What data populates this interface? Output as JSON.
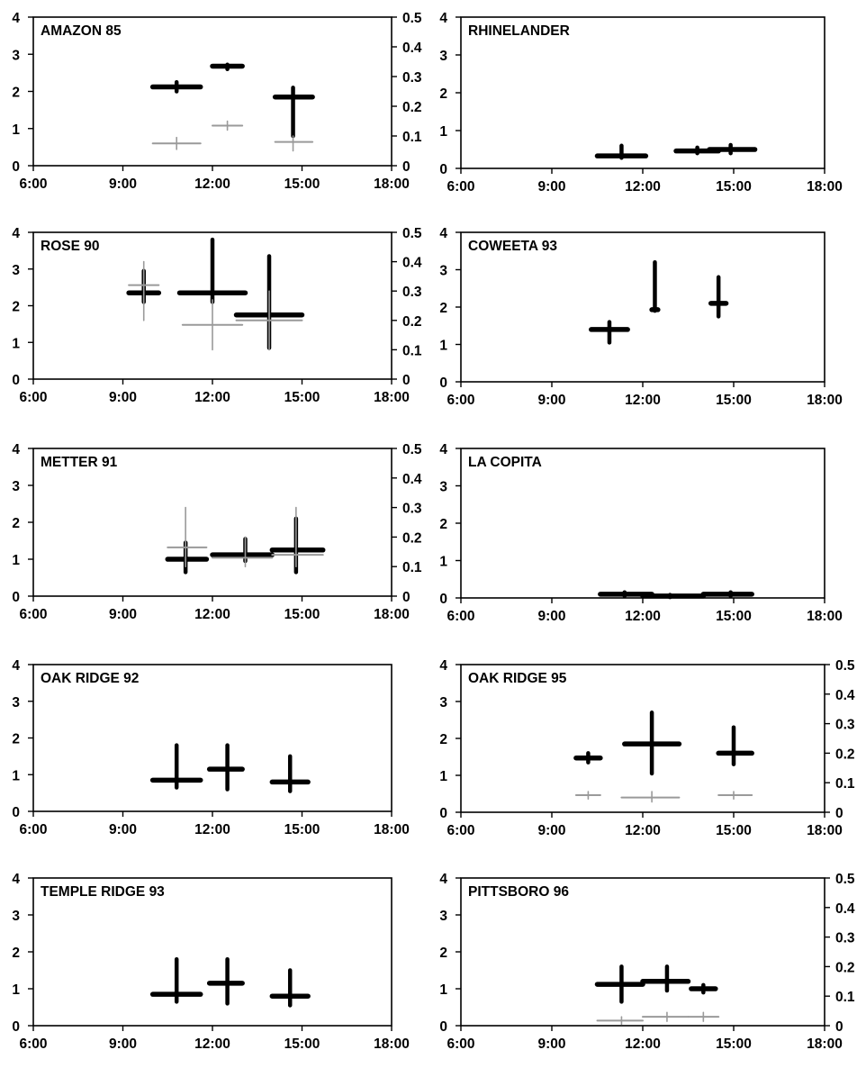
{
  "figure": {
    "black_color": "#000000",
    "gray_color": "#9a9a9a"
  },
  "chart_data": [
    {
      "type": "scatter",
      "title": "AMAZON 85",
      "x_ticks": [
        "6:00",
        "9:00",
        "12:00",
        "15:00",
        "18:00"
      ],
      "xlim": [
        6,
        18
      ],
      "ylim": [
        0,
        4
      ],
      "y_ticks": [
        "0",
        "1",
        "2",
        "3",
        "4"
      ],
      "y2lim": [
        0,
        0.5
      ],
      "y2_ticks": [
        "0",
        "0.1",
        "0.2",
        "0.3",
        "0.4",
        "0.5"
      ],
      "series": [
        {
          "axis": "left",
          "color": "#000000",
          "points": [
            {
              "x": 10.8,
              "x_err": [
                10.0,
                11.6
              ],
              "y": 2.12,
              "y_err": [
                2.0,
                2.25
              ]
            },
            {
              "x": 12.5,
              "x_err": [
                12.0,
                13.0
              ],
              "y": 2.68,
              "y_err": [
                2.6,
                2.72
              ]
            },
            {
              "x": 14.7,
              "x_err": [
                14.1,
                15.35
              ],
              "y": 1.85,
              "y_err": [
                0.8,
                2.1
              ]
            }
          ]
        },
        {
          "axis": "right",
          "color": "#9a9a9a",
          "points": [
            {
              "x": 10.8,
              "x_err": [
                10.0,
                11.6
              ],
              "y": 0.075,
              "y_err": [
                0.055,
                0.095
              ]
            },
            {
              "x": 12.5,
              "x_err": [
                12.0,
                13.0
              ],
              "y": 0.135,
              "y_err": [
                0.12,
                0.15
              ]
            },
            {
              "x": 14.7,
              "x_err": [
                14.1,
                15.35
              ],
              "y": 0.08,
              "y_err": [
                0.05,
                0.1
              ]
            }
          ]
        }
      ]
    },
    {
      "type": "scatter",
      "title": "RHINELANDER",
      "x_ticks": [
        "6:00",
        "9:00",
        "12:00",
        "15:00",
        "18:00"
      ],
      "xlim": [
        6,
        18
      ],
      "ylim": [
        0,
        4
      ],
      "y_ticks": [
        "0",
        "1",
        "2",
        "3",
        "4"
      ],
      "series": [
        {
          "axis": "left",
          "color": "#000000",
          "points": [
            {
              "x": 11.3,
              "x_err": [
                10.5,
                12.1
              ],
              "y": 0.33,
              "y_err": [
                0.28,
                0.6
              ]
            },
            {
              "x": 13.8,
              "x_err": [
                13.1,
                14.5
              ],
              "y": 0.46,
              "y_err": [
                0.4,
                0.55
              ]
            },
            {
              "x": 14.9,
              "x_err": [
                14.2,
                15.7
              ],
              "y": 0.5,
              "y_err": [
                0.4,
                0.62
              ]
            }
          ]
        }
      ]
    },
    {
      "type": "scatter",
      "title": "ROSE 90",
      "x_ticks": [
        "6:00",
        "9:00",
        "12:00",
        "15:00",
        "18:00"
      ],
      "xlim": [
        6,
        18
      ],
      "ylim": [
        0,
        4
      ],
      "y_ticks": [
        "0",
        "1",
        "2",
        "3",
        "4"
      ],
      "y2lim": [
        0,
        0.5
      ],
      "y2_ticks": [
        "0",
        "0.1",
        "0.2",
        "0.3",
        "0.4",
        "0.5"
      ],
      "series": [
        {
          "axis": "left",
          "color": "#000000",
          "points": [
            {
              "x": 9.7,
              "x_err": [
                9.2,
                10.2
              ],
              "y": 2.35,
              "y_err": [
                2.1,
                2.95
              ]
            },
            {
              "x": 12.0,
              "x_err": [
                10.9,
                13.1
              ],
              "y": 2.35,
              "y_err": [
                2.1,
                3.8
              ]
            },
            {
              "x": 13.9,
              "x_err": [
                12.8,
                15.0
              ],
              "y": 1.75,
              "y_err": [
                0.85,
                3.35
              ]
            }
          ]
        },
        {
          "axis": "right",
          "color": "#9a9a9a",
          "points": [
            {
              "x": 9.7,
              "x_err": [
                9.2,
                10.2
              ],
              "y": 0.32,
              "y_err": [
                0.2,
                0.4
              ]
            },
            {
              "x": 12.0,
              "x_err": [
                11.0,
                13.0
              ],
              "y": 0.185,
              "y_err": [
                0.1,
                0.27
              ]
            },
            {
              "x": 13.9,
              "x_err": [
                12.8,
                15.0
              ],
              "y": 0.2,
              "y_err": [
                0.1,
                0.3
              ]
            }
          ]
        }
      ]
    },
    {
      "type": "scatter",
      "title": "COWEETA 93",
      "x_ticks": [
        "6:00",
        "9:00",
        "12:00",
        "15:00",
        "18:00"
      ],
      "xlim": [
        6,
        18
      ],
      "ylim": [
        0,
        4
      ],
      "y_ticks": [
        "0",
        "1",
        "2",
        "3",
        "4"
      ],
      "series": [
        {
          "axis": "left",
          "color": "#000000",
          "points": [
            {
              "x": 10.9,
              "x_err": [
                10.3,
                11.5
              ],
              "y": 1.4,
              "y_err": [
                1.05,
                1.6
              ]
            },
            {
              "x": 12.4,
              "x_err": [
                12.3,
                12.5
              ],
              "y": 1.93,
              "y_err": [
                1.9,
                3.2
              ]
            },
            {
              "x": 14.5,
              "x_err": [
                14.25,
                14.75
              ],
              "y": 2.1,
              "y_err": [
                1.75,
                2.8
              ]
            }
          ]
        }
      ]
    },
    {
      "type": "scatter",
      "title": "METTER 91",
      "x_ticks": [
        "6:00",
        "9:00",
        "12:00",
        "15:00",
        "18:00"
      ],
      "xlim": [
        6,
        18
      ],
      "ylim": [
        0,
        4
      ],
      "y_ticks": [
        "0",
        "1",
        "2",
        "3",
        "4"
      ],
      "y2lim": [
        0,
        0.5
      ],
      "y2_ticks": [
        "0",
        "0.1",
        "0.2",
        "0.3",
        "0.4",
        "0.5"
      ],
      "series": [
        {
          "axis": "left",
          "color": "#000000",
          "points": [
            {
              "x": 11.1,
              "x_err": [
                10.5,
                11.8
              ],
              "y": 1.0,
              "y_err": [
                0.65,
                1.45
              ]
            },
            {
              "x": 13.1,
              "x_err": [
                12.0,
                14.0
              ],
              "y": 1.12,
              "y_err": [
                0.95,
                1.55
              ]
            },
            {
              "x": 14.8,
              "x_err": [
                14.0,
                15.7
              ],
              "y": 1.25,
              "y_err": [
                0.65,
                2.1
              ]
            }
          ]
        },
        {
          "axis": "right",
          "color": "#9a9a9a",
          "points": [
            {
              "x": 11.1,
              "x_err": [
                10.5,
                11.8
              ],
              "y": 0.165,
              "y_err": [
                0.1,
                0.3
              ]
            },
            {
              "x": 13.1,
              "x_err": [
                12.0,
                14.0
              ],
              "y": 0.13,
              "y_err": [
                0.1,
                0.2
              ]
            },
            {
              "x": 14.8,
              "x_err": [
                14.0,
                15.7
              ],
              "y": 0.14,
              "y_err": [
                0.1,
                0.3
              ]
            }
          ]
        }
      ]
    },
    {
      "type": "scatter",
      "title": "LA COPITA",
      "x_ticks": [
        "6:00",
        "9:00",
        "12:00",
        "15:00",
        "18:00"
      ],
      "xlim": [
        6,
        18
      ],
      "ylim": [
        0,
        4
      ],
      "y_ticks": [
        "0",
        "1",
        "2",
        "3",
        "4"
      ],
      "series": [
        {
          "axis": "left",
          "color": "#000000",
          "points": [
            {
              "x": 11.4,
              "x_err": [
                10.6,
                12.3
              ],
              "y": 0.1,
              "y_err": [
                0.05,
                0.15
              ]
            },
            {
              "x": 12.9,
              "x_err": [
                12.0,
                14.0
              ],
              "y": 0.05,
              "y_err": [
                0.02,
                0.08
              ]
            },
            {
              "x": 14.9,
              "x_err": [
                14.0,
                15.6
              ],
              "y": 0.1,
              "y_err": [
                0.05,
                0.15
              ]
            }
          ]
        }
      ]
    },
    {
      "type": "scatter",
      "title": "OAK RIDGE 92",
      "x_ticks": [
        "6:00",
        "9:00",
        "12:00",
        "15:00",
        "18:00"
      ],
      "xlim": [
        6,
        18
      ],
      "ylim": [
        0,
        4
      ],
      "y_ticks": [
        "0",
        "1",
        "2",
        "3",
        "4"
      ],
      "series": [
        {
          "axis": "left",
          "color": "#000000",
          "points": [
            {
              "x": 10.8,
              "x_err": [
                10.0,
                11.6
              ],
              "y": 0.85,
              "y_err": [
                0.65,
                1.8
              ]
            },
            {
              "x": 12.5,
              "x_err": [
                11.9,
                13.0
              ],
              "y": 1.15,
              "y_err": [
                0.6,
                1.8
              ]
            },
            {
              "x": 14.6,
              "x_err": [
                14.0,
                15.2
              ],
              "y": 0.8,
              "y_err": [
                0.55,
                1.5
              ]
            }
          ]
        }
      ]
    },
    {
      "type": "scatter",
      "title": "OAK RIDGE 95",
      "x_ticks": [
        "6:00",
        "9:00",
        "12:00",
        "15:00",
        "18:00"
      ],
      "xlim": [
        6,
        18
      ],
      "ylim": [
        0,
        4
      ],
      "y_ticks": [
        "0",
        "1",
        "2",
        "3",
        "4"
      ],
      "y2lim": [
        0,
        0.5
      ],
      "y2_ticks": [
        "0",
        "0.1",
        "0.2",
        "0.3",
        "0.4",
        "0.5"
      ],
      "series": [
        {
          "axis": "left",
          "color": "#000000",
          "points": [
            {
              "x": 10.2,
              "x_err": [
                9.8,
                10.6
              ],
              "y": 1.47,
              "y_err": [
                1.35,
                1.6
              ]
            },
            {
              "x": 12.3,
              "x_err": [
                11.4,
                13.2
              ],
              "y": 1.85,
              "y_err": [
                1.05,
                2.7
              ]
            },
            {
              "x": 15.0,
              "x_err": [
                14.5,
                15.6
              ],
              "y": 1.6,
              "y_err": [
                1.3,
                2.3
              ]
            }
          ]
        },
        {
          "axis": "right",
          "color": "#9a9a9a",
          "points": [
            {
              "x": 10.2,
              "x_err": [
                9.8,
                10.6
              ],
              "y": 0.058,
              "y_err": [
                0.045,
                0.07
              ]
            },
            {
              "x": 12.3,
              "x_err": [
                11.3,
                13.2
              ],
              "y": 0.05,
              "y_err": [
                0.035,
                0.07
              ]
            },
            {
              "x": 15.0,
              "x_err": [
                14.5,
                15.6
              ],
              "y": 0.058,
              "y_err": [
                0.045,
                0.07
              ]
            }
          ]
        }
      ]
    },
    {
      "type": "scatter",
      "title": "TEMPLE RIDGE 93",
      "x_ticks": [
        "6:00",
        "9:00",
        "12:00",
        "15:00",
        "18:00"
      ],
      "xlim": [
        6,
        18
      ],
      "ylim": [
        0,
        4
      ],
      "y_ticks": [
        "0",
        "1",
        "2",
        "3",
        "4"
      ],
      "series": [
        {
          "axis": "left",
          "color": "#000000",
          "points": [
            {
              "x": 10.8,
              "x_err": [
                10.0,
                11.6
              ],
              "y": 0.85,
              "y_err": [
                0.65,
                1.8
              ]
            },
            {
              "x": 12.5,
              "x_err": [
                11.9,
                13.0
              ],
              "y": 1.15,
              "y_err": [
                0.6,
                1.8
              ]
            },
            {
              "x": 14.6,
              "x_err": [
                14.0,
                15.2
              ],
              "y": 0.8,
              "y_err": [
                0.55,
                1.5
              ]
            }
          ]
        }
      ]
    },
    {
      "type": "scatter",
      "title": "PITTSBORO 96",
      "x_ticks": [
        "6:00",
        "9:00",
        "12:00",
        "15:00",
        "18:00"
      ],
      "xlim": [
        6,
        18
      ],
      "ylim": [
        0,
        4
      ],
      "y_ticks": [
        "0",
        "1",
        "2",
        "3",
        "4"
      ],
      "y2lim": [
        0,
        0.5
      ],
      "y2_ticks": [
        "0",
        "0.1",
        "0.2",
        "0.3",
        "0.4",
        "0.5"
      ],
      "series": [
        {
          "axis": "left",
          "color": "#000000",
          "points": [
            {
              "x": 11.3,
              "x_err": [
                10.5,
                12.0
              ],
              "y": 1.12,
              "y_err": [
                0.65,
                1.6
              ]
            },
            {
              "x": 12.8,
              "x_err": [
                12.0,
                13.5
              ],
              "y": 1.2,
              "y_err": [
                0.95,
                1.6
              ]
            },
            {
              "x": 14.0,
              "x_err": [
                13.6,
                14.4
              ],
              "y": 1.0,
              "y_err": [
                0.9,
                1.1
              ]
            }
          ]
        },
        {
          "axis": "right",
          "color": "#9a9a9a",
          "points": [
            {
              "x": 11.3,
              "x_err": [
                10.5,
                12.0
              ],
              "y": 0.017,
              "y_err": [
                0.005,
                0.03
              ]
            },
            {
              "x": 12.8,
              "x_err": [
                12.0,
                13.5
              ],
              "y": 0.03,
              "y_err": [
                0.015,
                0.045
              ]
            },
            {
              "x": 14.0,
              "x_err": [
                13.5,
                14.5
              ],
              "y": 0.03,
              "y_err": [
                0.015,
                0.045
              ]
            }
          ]
        }
      ]
    }
  ]
}
